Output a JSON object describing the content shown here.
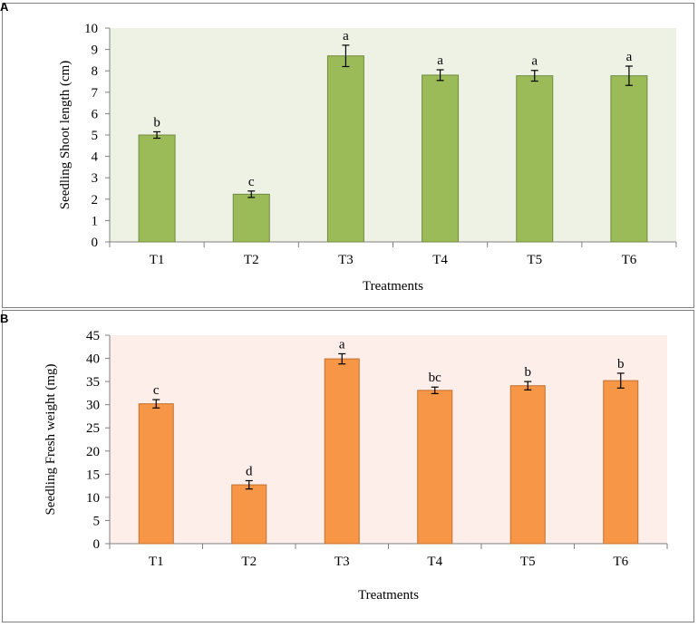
{
  "panels": [
    {
      "letter": "A"
    },
    {
      "letter": "B"
    }
  ],
  "chart_data": [
    {
      "type": "bar",
      "title": "",
      "categories": [
        "T1",
        "T2",
        "T3",
        "T4",
        "T5",
        "T6"
      ],
      "values": [
        5.0,
        2.23,
        8.7,
        7.8,
        7.77,
        7.77
      ],
      "errors": [
        0.15,
        0.15,
        0.5,
        0.25,
        0.25,
        0.45
      ],
      "letters": [
        "b",
        "c",
        "a",
        "a",
        "a",
        "a"
      ],
      "xlabel": "Treatments",
      "ylabel": "Seedling Shoot length (cm)",
      "ylim": [
        0,
        10
      ],
      "yticks": [
        0,
        1,
        2,
        3,
        4,
        5,
        6,
        7,
        8,
        9,
        10
      ],
      "bar_color": "#9bbb59",
      "bar_edge": "#71893f",
      "plot_bg": "#eef2e5"
    },
    {
      "type": "bar",
      "title": "",
      "categories": [
        "T1",
        "T2",
        "T3",
        "T4",
        "T5",
        "T6"
      ],
      "values": [
        30.2,
        12.7,
        39.9,
        33.1,
        34.1,
        35.2
      ],
      "errors": [
        0.9,
        0.9,
        1.1,
        0.7,
        0.9,
        1.6
      ],
      "letters": [
        "c",
        "d",
        "a",
        "bc",
        "b",
        "b"
      ],
      "xlabel": "Treatments",
      "ylabel": "Seedling Fresh weight (mg)",
      "ylim": [
        0,
        45
      ],
      "yticks": [
        0,
        5,
        10,
        15,
        20,
        25,
        30,
        35,
        40,
        45
      ],
      "bar_color": "#f79646",
      "bar_edge": "#c0702f",
      "plot_bg": "#fdeeea"
    }
  ]
}
